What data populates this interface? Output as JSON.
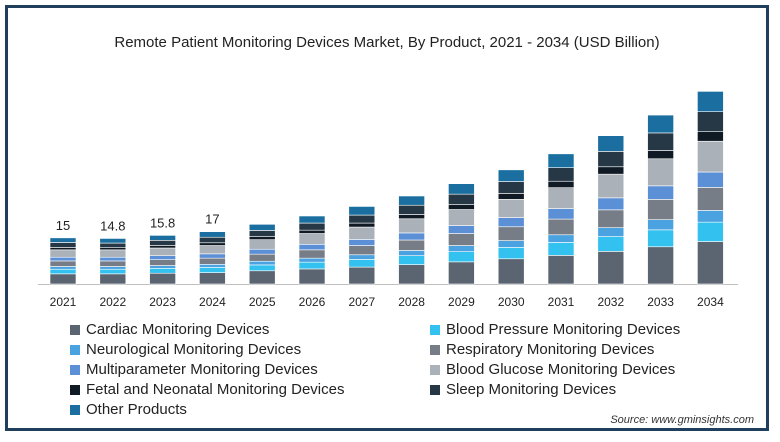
{
  "chart_data": {
    "type": "bar",
    "stacked": true,
    "title": "Remote Patient Monitoring Devices Market, By Product, 2021 - 2034 (USD Billion)",
    "categories": [
      "2021",
      "2022",
      "2023",
      "2024",
      "2025",
      "2026",
      "2027",
      "2028",
      "2029",
      "2030",
      "2031",
      "2032",
      "2033",
      "2034"
    ],
    "totals": [
      15,
      14.8,
      15.8,
      17,
      19.4,
      22.1,
      25.2,
      28.6,
      32.6,
      37.1,
      42.3,
      48.2,
      54.9,
      62.6
    ],
    "total_labels": [
      "15",
      "14.8",
      "15.8",
      "17",
      "",
      "",
      "",
      "",
      "",
      "",
      "",
      "",
      "",
      ""
    ],
    "series": [
      {
        "name": "Cardiac Monitoring Devices",
        "color": "#5a6571",
        "values": [
          3.3,
          3.3,
          3.5,
          3.7,
          4.3,
          4.9,
          5.5,
          6.3,
          7.2,
          8.2,
          9.3,
          10.6,
          12.1,
          13.8
        ]
      },
      {
        "name": "Blood Pressure Monitoring Devices",
        "color": "#33c1ef",
        "values": [
          1.5,
          1.5,
          1.6,
          1.7,
          1.9,
          2.2,
          2.5,
          2.9,
          3.3,
          3.7,
          4.2,
          4.8,
          5.5,
          6.3
        ]
      },
      {
        "name": "Neurological Monitoring Devices",
        "color": "#4aa3e0",
        "values": [
          0.9,
          0.9,
          0.9,
          1.0,
          1.2,
          1.3,
          1.5,
          1.7,
          2.0,
          2.2,
          2.5,
          2.9,
          3.3,
          3.8
        ]
      },
      {
        "name": "Respiratory Monitoring Devices",
        "color": "#767d86",
        "values": [
          1.8,
          1.8,
          1.9,
          2.0,
          2.3,
          2.7,
          3.0,
          3.4,
          3.9,
          4.5,
          5.1,
          5.8,
          6.6,
          7.5
        ]
      },
      {
        "name": "Multiparameter Monitoring Devices",
        "color": "#5b8fd6",
        "values": [
          1.2,
          1.2,
          1.3,
          1.4,
          1.6,
          1.8,
          2.0,
          2.3,
          2.6,
          3.0,
          3.4,
          3.9,
          4.4,
          5.0
        ]
      },
      {
        "name": "Blood Glucose Monitoring Devices",
        "color": "#aab1b9",
        "values": [
          2.4,
          2.4,
          2.5,
          2.7,
          3.1,
          3.5,
          4.0,
          4.6,
          5.2,
          5.9,
          6.8,
          7.7,
          8.8,
          10.0
        ]
      },
      {
        "name": "Fetal and Neonatal Monitoring Devices",
        "color": "#0f1a24",
        "values": [
          0.8,
          0.7,
          0.8,
          0.9,
          1.0,
          1.1,
          1.3,
          1.4,
          1.6,
          1.9,
          2.1,
          2.4,
          2.7,
          3.1
        ]
      },
      {
        "name": "Sleep Monitoring Devices",
        "color": "#263746",
        "values": [
          1.6,
          1.5,
          1.7,
          1.8,
          2.0,
          2.3,
          2.6,
          3.0,
          3.4,
          3.9,
          4.4,
          5.0,
          5.7,
          6.5
        ]
      },
      {
        "name": "Other Products",
        "color": "#1a6fa0",
        "values": [
          1.5,
          1.5,
          1.6,
          1.8,
          2.0,
          2.3,
          2.8,
          3.0,
          3.4,
          3.8,
          4.5,
          5.1,
          5.8,
          6.6
        ]
      }
    ],
    "xlabel": "",
    "ylabel": "",
    "ylim": [
      0,
      65
    ],
    "grid": false,
    "legend_position": "bottom"
  },
  "source": "Source: www.gminsights.com"
}
